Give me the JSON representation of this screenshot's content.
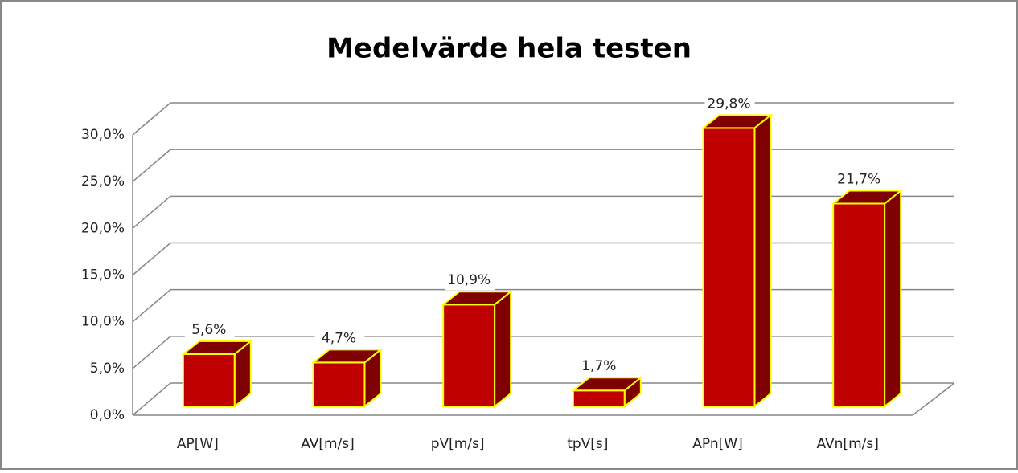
{
  "chart_data": {
    "type": "bar3d",
    "title": "Medelvärde hela testen",
    "categories": [
      "AP[W]",
      "AV[m/s]",
      "pV[m/s]",
      "tpV[s]",
      "APn[W]",
      "AVn[m/s]"
    ],
    "values": [
      5.6,
      4.7,
      10.9,
      1.7,
      29.8,
      21.7
    ],
    "value_labels": [
      "5,6%",
      "4,7%",
      "10,9%",
      "1,7%",
      "29,8%",
      "21,7%"
    ],
    "color": "#c00000",
    "side_color": "#7f0000",
    "edge_color": "#ffff00",
    "ylim": [
      0,
      30
    ],
    "yticks": [
      {
        "value": 0,
        "label": "0,0%"
      },
      {
        "value": 5,
        "label": "5,0%"
      },
      {
        "value": 10,
        "label": "10,0%"
      },
      {
        "value": 15,
        "label": "15,0%"
      },
      {
        "value": 20,
        "label": "20,0%"
      },
      {
        "value": 25,
        "label": "25,0%"
      },
      {
        "value": 30,
        "label": "30,0%"
      }
    ],
    "grid": true
  }
}
